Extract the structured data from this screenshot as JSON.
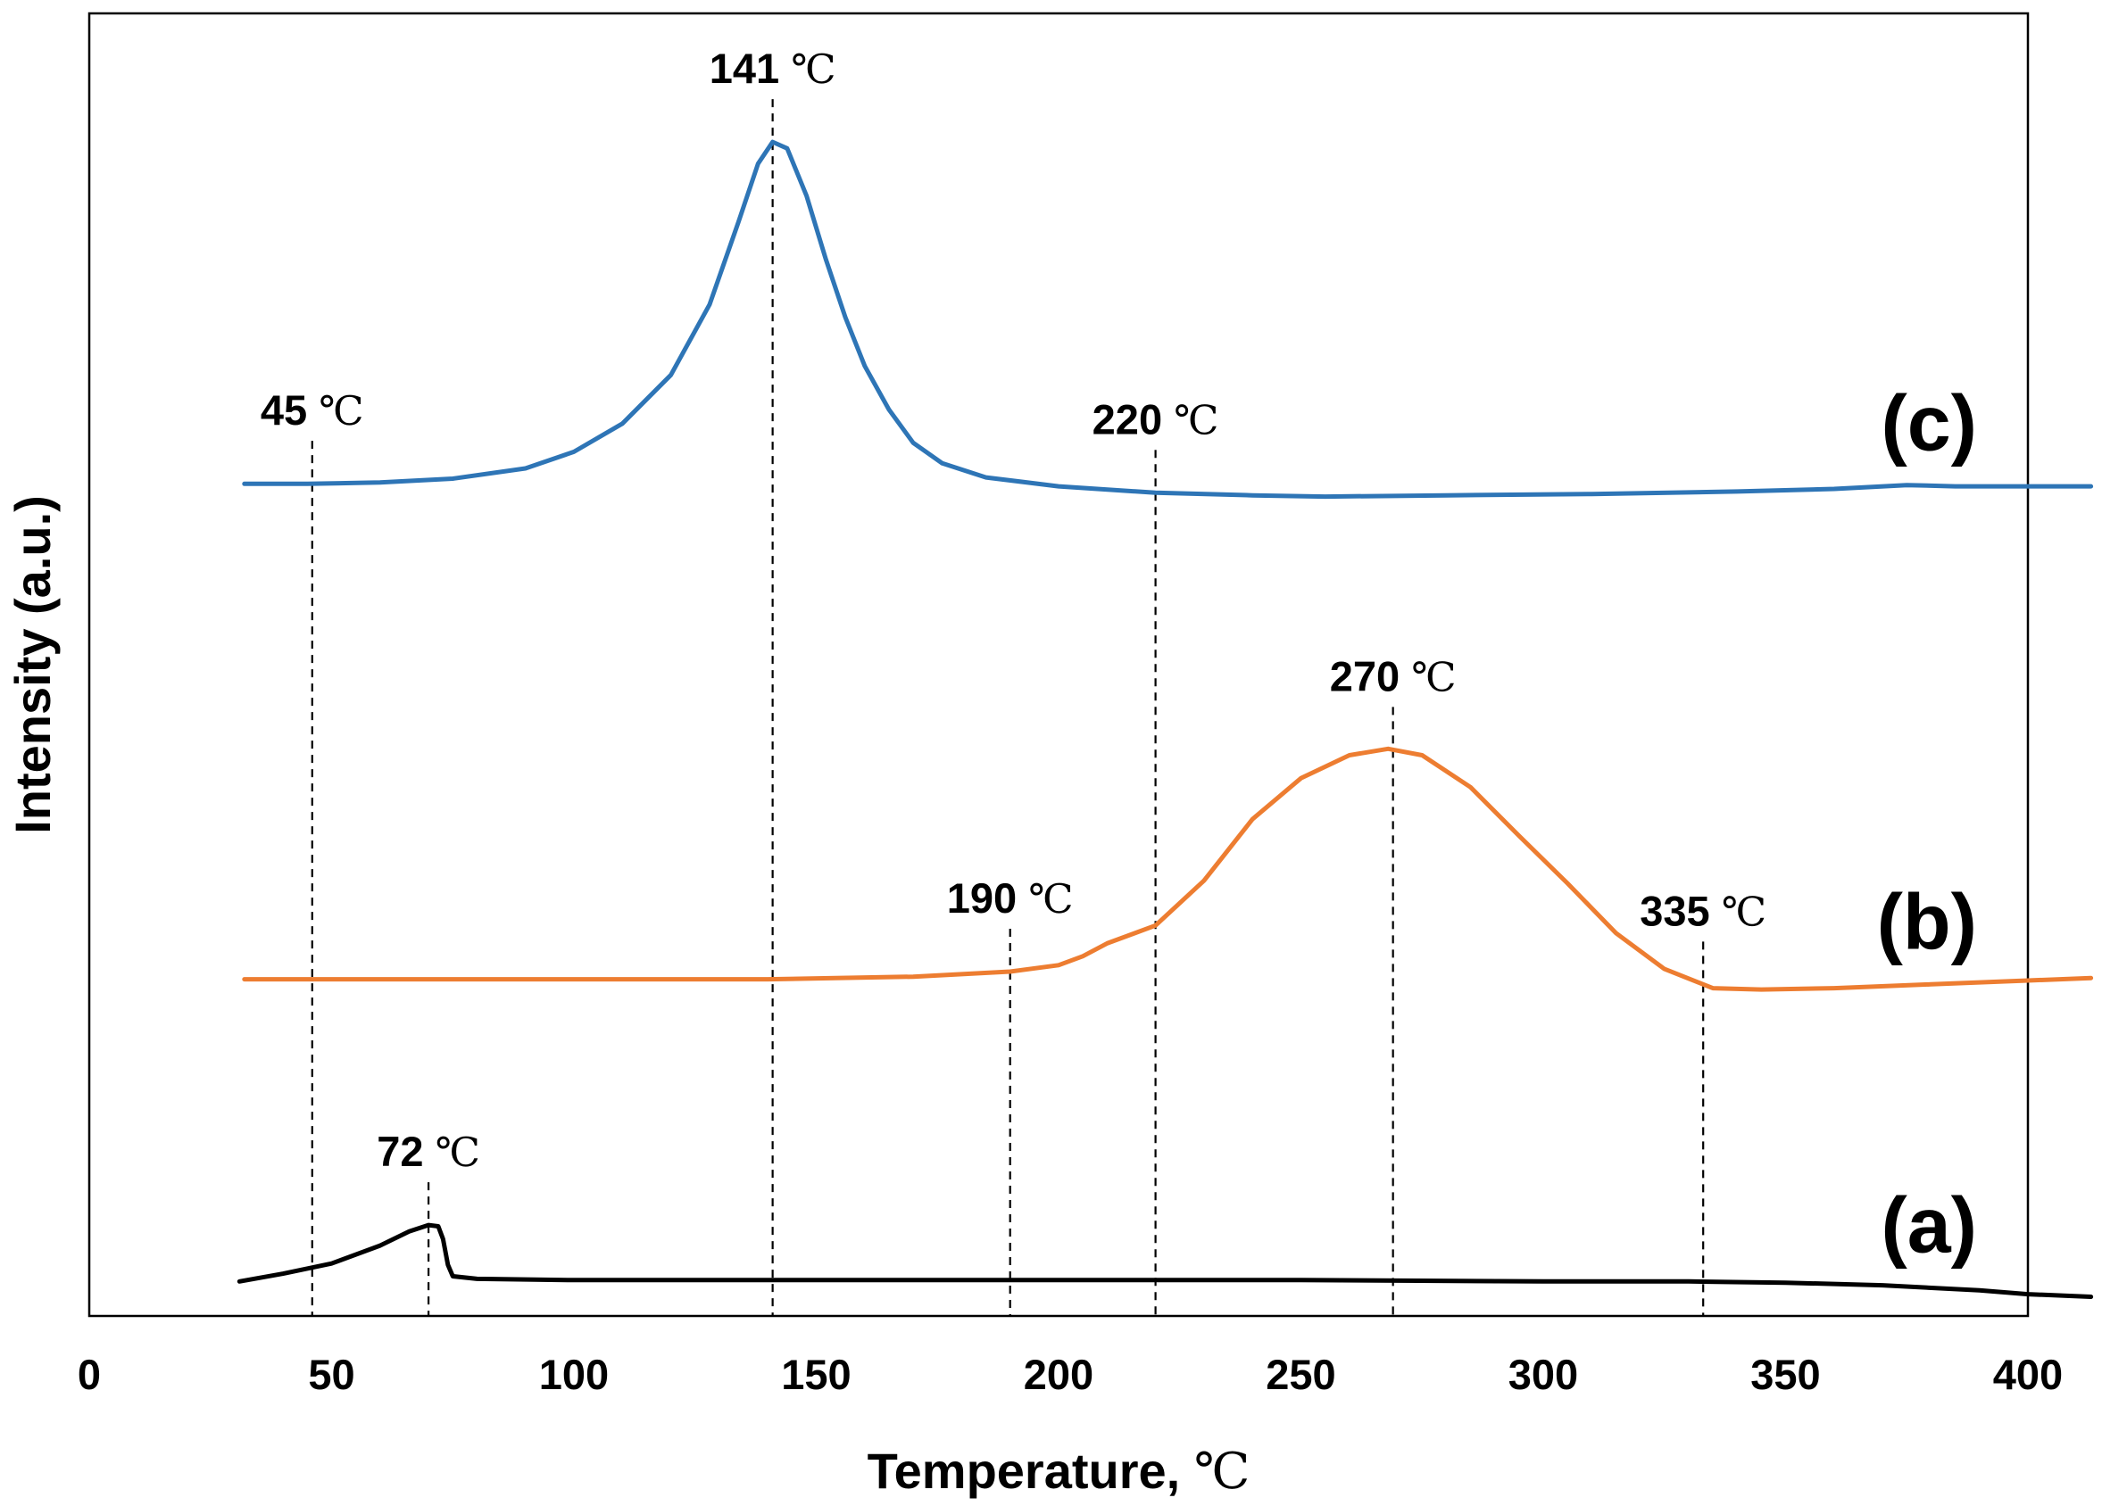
{
  "chart_data": {
    "type": "line",
    "xlabel": "Temperature, ",
    "xlabel_unit": "℃",
    "ylabel": "Intensity (a.u.)",
    "xlim": [
      0,
      400
    ],
    "x_ticks": [
      0,
      50,
      100,
      150,
      200,
      250,
      300,
      350,
      400
    ],
    "y_ticks": [],
    "grid": false,
    "legend": "none",
    "series": [
      {
        "name": "(c)",
        "color": "#2e75b6",
        "points": [
          [
            32,
            0.65
          ],
          [
            45,
            0.65
          ],
          [
            60,
            0.651
          ],
          [
            75,
            0.654
          ],
          [
            90,
            0.662
          ],
          [
            100,
            0.675
          ],
          [
            110,
            0.697
          ],
          [
            120,
            0.735
          ],
          [
            128,
            0.79
          ],
          [
            134,
            0.855
          ],
          [
            138,
            0.9
          ],
          [
            141,
            0.917
          ],
          [
            144,
            0.912
          ],
          [
            148,
            0.875
          ],
          [
            152,
            0.825
          ],
          [
            156,
            0.78
          ],
          [
            160,
            0.742
          ],
          [
            165,
            0.708
          ],
          [
            170,
            0.682
          ],
          [
            176,
            0.666
          ],
          [
            185,
            0.655
          ],
          [
            200,
            0.648
          ],
          [
            220,
            0.643
          ],
          [
            240,
            0.641
          ],
          [
            255,
            0.64
          ],
          [
            280,
            0.641
          ],
          [
            310,
            0.642
          ],
          [
            340,
            0.644
          ],
          [
            360,
            0.646
          ],
          [
            375,
            0.649
          ],
          [
            385,
            0.648
          ],
          [
            400,
            0.648
          ],
          [
            413,
            0.648
          ]
        ]
      },
      {
        "name": "(b)",
        "color": "#ed7d31",
        "points": [
          [
            32,
            0.263
          ],
          [
            60,
            0.263
          ],
          [
            100,
            0.263
          ],
          [
            140,
            0.263
          ],
          [
            170,
            0.265
          ],
          [
            190,
            0.269
          ],
          [
            200,
            0.274
          ],
          [
            205,
            0.281
          ],
          [
            210,
            0.291
          ],
          [
            220,
            0.305
          ],
          [
            230,
            0.34
          ],
          [
            240,
            0.388
          ],
          [
            250,
            0.42
          ],
          [
            260,
            0.438
          ],
          [
            268,
            0.443
          ],
          [
            275,
            0.438
          ],
          [
            285,
            0.413
          ],
          [
            295,
            0.375
          ],
          [
            305,
            0.338
          ],
          [
            315,
            0.299
          ],
          [
            325,
            0.271
          ],
          [
            335,
            0.256
          ],
          [
            345,
            0.255
          ],
          [
            360,
            0.256
          ],
          [
            380,
            0.259
          ],
          [
            400,
            0.262
          ],
          [
            413,
            0.264
          ]
        ]
      },
      {
        "name": "(a)",
        "color": "#000000",
        "points": [
          [
            31,
            0.027
          ],
          [
            40,
            0.033
          ],
          [
            50,
            0.041
          ],
          [
            60,
            0.055
          ],
          [
            66,
            0.066
          ],
          [
            70,
            0.071
          ],
          [
            72,
            0.07
          ],
          [
            73,
            0.06
          ],
          [
            74,
            0.04
          ],
          [
            75,
            0.031
          ],
          [
            80,
            0.029
          ],
          [
            100,
            0.028
          ],
          [
            150,
            0.028
          ],
          [
            200,
            0.028
          ],
          [
            250,
            0.028
          ],
          [
            300,
            0.027
          ],
          [
            330,
            0.027
          ],
          [
            350,
            0.026
          ],
          [
            370,
            0.024
          ],
          [
            390,
            0.02
          ],
          [
            400,
            0.017
          ],
          [
            413,
            0.015
          ]
        ]
      }
    ],
    "curve_labels": [
      {
        "text": "(c)",
        "series": "(c)"
      },
      {
        "text": "(b)",
        "series": "(b)"
      },
      {
        "text": "(a)",
        "series": "(a)"
      }
    ],
    "annotations": [
      {
        "value": "45",
        "unit": "℃",
        "x": 46,
        "series": "(c)"
      },
      {
        "value": "141",
        "unit": "℃",
        "x": 141,
        "series": "(c)"
      },
      {
        "value": "220",
        "unit": "℃",
        "x": 220,
        "series": "(c)"
      },
      {
        "value": "190",
        "unit": "℃",
        "x": 190,
        "series": "(b)"
      },
      {
        "value": "270",
        "unit": "℃",
        "x": 269,
        "series": "(b)"
      },
      {
        "value": "335",
        "unit": "℃",
        "x": 333,
        "series": "(b)"
      },
      {
        "value": "72",
        "unit": "℃",
        "x": 70,
        "series": "(a)"
      }
    ]
  }
}
